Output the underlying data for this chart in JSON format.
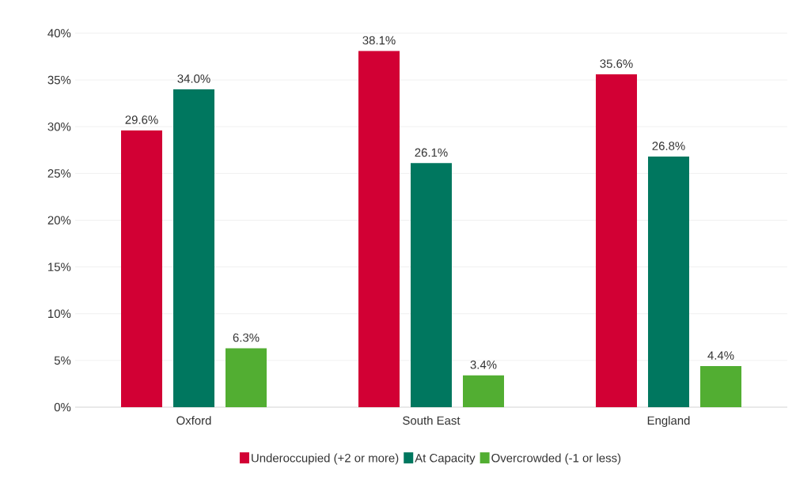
{
  "chart_data": {
    "type": "bar",
    "categories": [
      "Oxford",
      "South East",
      "England"
    ],
    "series": [
      {
        "name": "Underoccupied (+2 or more)",
        "color": "#d20034",
        "values": [
          29.6,
          38.1,
          35.6
        ],
        "value_labels": [
          "29.6%",
          "38.1%",
          "35.6%"
        ]
      },
      {
        "name": "At Capacity",
        "color": "#00775f",
        "values": [
          34.0,
          26.1,
          26.8
        ],
        "value_labels": [
          "34.0%",
          "26.1%",
          "26.8%"
        ]
      },
      {
        "name": "Overcrowded (-1 or less)",
        "color": "#52ae32",
        "values": [
          6.3,
          3.4,
          4.4
        ],
        "value_labels": [
          "6.3%",
          "3.4%",
          "4.4%"
        ]
      }
    ],
    "ylim": [
      0,
      40
    ],
    "yticks": [
      {
        "value": 0,
        "label": "0%"
      },
      {
        "value": 5,
        "label": "5%"
      },
      {
        "value": 10,
        "label": "10%"
      },
      {
        "value": 15,
        "label": "15%"
      },
      {
        "value": 20,
        "label": "20%"
      },
      {
        "value": 25,
        "label": "25%"
      },
      {
        "value": 30,
        "label": "30%"
      },
      {
        "value": 35,
        "label": "35%"
      },
      {
        "value": 40,
        "label": "40%"
      }
    ],
    "grid": "y",
    "legend": "bottom"
  }
}
